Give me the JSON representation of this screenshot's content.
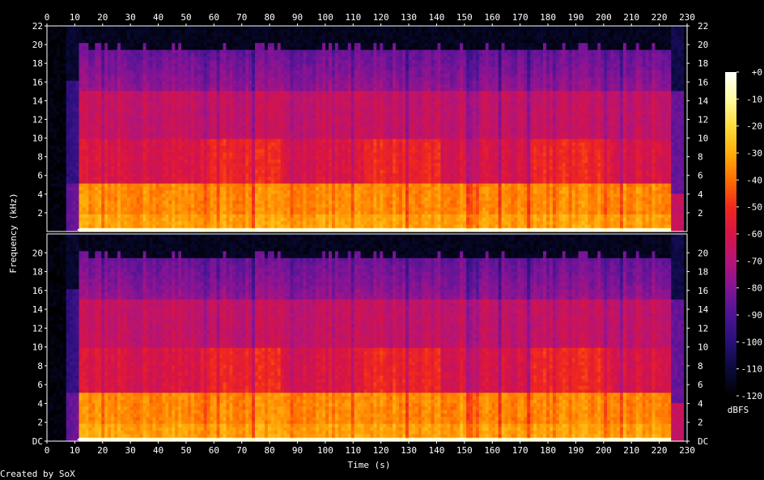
{
  "chart_data": {
    "type": "heatmap",
    "title": "",
    "xlabel": "Time (s)",
    "ylabel": "Frequency (kHz)",
    "x_ticks": [
      0,
      10,
      20,
      30,
      40,
      50,
      60,
      70,
      80,
      90,
      100,
      110,
      120,
      130,
      140,
      150,
      160,
      170,
      180,
      190,
      200,
      210,
      220,
      230
    ],
    "y_ticks_top": [
      "2",
      "4",
      "6",
      "8",
      "10",
      "12",
      "14",
      "16",
      "18",
      "20",
      "22"
    ],
    "y_ticks_bottom": [
      "DC",
      "2",
      "4",
      "6",
      "8",
      "10",
      "12",
      "14",
      "16",
      "18",
      "20"
    ],
    "xlim": [
      0,
      230
    ],
    "ylim_khz": [
      0,
      22
    ],
    "channels": [
      "channel-1",
      "channel-2"
    ],
    "colorbar": {
      "label": "dBFS",
      "ticks": [
        "+0",
        "-10",
        "-20",
        "-30",
        "-40",
        "-50",
        "-60",
        "-70",
        "-80",
        "-90",
        "-100",
        "-110",
        "-120"
      ],
      "range": [
        -120,
        0
      ]
    },
    "signal_start_s": 7,
    "signal_end_s": 229,
    "upper_cutoff_khz": 19.5,
    "lower_band_khz": 5
  },
  "footer": {
    "credit": "Created by SoX"
  }
}
